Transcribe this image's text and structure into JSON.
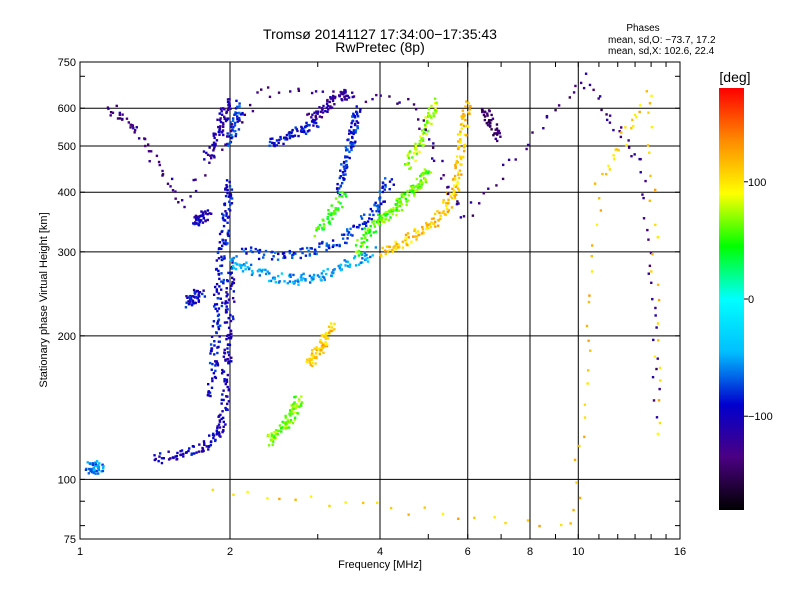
{
  "chart_data": {
    "type": "scatter",
    "title": "Tromsø 20141127 17:34:00−17:35:43",
    "subtitle": "RwPretec (8p)",
    "xlabel": "Frequency [MHz]",
    "ylabel": "Stationary phase Virtual Height [km]",
    "x_scale": "log",
    "y_scale": "log",
    "xlim": [
      1,
      16
    ],
    "ylim": [
      75,
      750
    ],
    "x_ticks": [
      1,
      2,
      4,
      6,
      8,
      10,
      16
    ],
    "x_tick_labels": [
      "1",
      "2",
      "4",
      "6",
      "8",
      "10",
      "16"
    ],
    "y_ticks": [
      75,
      100,
      200,
      300,
      400,
      500,
      600,
      750
    ],
    "y_tick_labels": [
      "75",
      "100",
      "200",
      "300",
      "400",
      "500",
      "600",
      "750"
    ],
    "grid": true,
    "stats": {
      "heading": "Phases",
      "line_o": "mean, sd,O: −73.7, 17.2",
      "line_x": "mean, sd,X: 102.6, 22.4"
    },
    "colorbar": {
      "label": "[deg]",
      "ticks": [
        -100,
        0,
        100
      ],
      "tick_labels": [
        "−100",
        "0",
        "100"
      ],
      "range": [
        -180,
        180
      ],
      "colors": [
        "#000000",
        "#4b0082",
        "#0000cd",
        "#00bfff",
        "#00ffff",
        "#00ff00",
        "#ffff00",
        "#ff8c00",
        "#ff0000"
      ]
    },
    "traces": [
      {
        "name": "",
        "phase": -100,
        "points": [
          [
            1.42,
            110
          ],
          [
            1.6,
            113
          ],
          [
            1.8,
            118
          ],
          [
            1.9,
            125
          ],
          [
            1.95,
            140
          ],
          [
            1.97,
            170
          ],
          [
            1.99,
            200
          ],
          [
            2.0,
            240
          ],
          [
            2.0,
            280
          ]
        ]
      },
      {
        "name": "",
        "phase": -90,
        "points": [
          [
            1.83,
            150
          ],
          [
            1.86,
            180
          ],
          [
            1.88,
            210
          ],
          [
            1.9,
            250
          ],
          [
            1.92,
            290
          ],
          [
            1.95,
            330
          ],
          [
            1.98,
            380
          ],
          [
            2.0,
            420
          ]
        ]
      },
      {
        "name": "",
        "phase": -50,
        "points": [
          [
            2.0,
            285
          ],
          [
            2.2,
            275
          ],
          [
            2.5,
            265
          ],
          [
            2.8,
            262
          ],
          [
            3.1,
            268
          ],
          [
            3.5,
            285
          ],
          [
            3.9,
            300
          ]
        ]
      },
      {
        "name": "",
        "phase": -80,
        "points": [
          [
            2.1,
            300
          ],
          [
            2.5,
            295
          ],
          [
            2.9,
            300
          ],
          [
            3.3,
            315
          ],
          [
            3.7,
            345
          ],
          [
            4.0,
            380
          ],
          [
            4.2,
            430
          ]
        ]
      },
      {
        "name": "",
        "phase": -110,
        "points": [
          [
            1.8,
            480
          ],
          [
            1.9,
            530
          ],
          [
            1.95,
            580
          ],
          [
            1.98,
            620
          ]
        ]
      },
      {
        "name": "",
        "phase": -80,
        "points": [
          [
            2.0,
            500
          ],
          [
            2.05,
            560
          ],
          [
            2.1,
            610
          ]
        ]
      },
      {
        "name": "",
        "phase": -90,
        "points": [
          [
            2.4,
            500
          ],
          [
            2.6,
            520
          ],
          [
            2.8,
            540
          ],
          [
            3.0,
            560
          ]
        ]
      },
      {
        "name": "",
        "phase": -120,
        "points": [
          [
            2.9,
            570
          ],
          [
            3.1,
            600
          ],
          [
            3.3,
            630
          ],
          [
            3.5,
            650
          ]
        ]
      },
      {
        "name": "",
        "phase": -85,
        "points": [
          [
            3.3,
            400
          ],
          [
            3.4,
            450
          ],
          [
            3.5,
            500
          ],
          [
            3.55,
            550
          ],
          [
            3.6,
            600
          ]
        ]
      },
      {
        "name": "",
        "phase": 60,
        "points": [
          [
            3.6,
            300
          ],
          [
            3.8,
            330
          ],
          [
            4.0,
            350
          ],
          [
            4.2,
            360
          ],
          [
            4.4,
            380
          ],
          [
            4.6,
            400
          ],
          [
            4.8,
            420
          ],
          [
            5.0,
            440
          ]
        ]
      },
      {
        "name": "",
        "phase": 110,
        "points": [
          [
            4.0,
            300
          ],
          [
            4.4,
            310
          ],
          [
            4.8,
            330
          ],
          [
            5.2,
            350
          ],
          [
            5.5,
            380
          ],
          [
            5.7,
            420
          ],
          [
            5.8,
            480
          ],
          [
            5.9,
            550
          ],
          [
            6.0,
            620
          ]
        ]
      },
      {
        "name": "",
        "phase": 75,
        "points": [
          [
            4.5,
            450
          ],
          [
            4.8,
            500
          ],
          [
            5.0,
            560
          ],
          [
            5.2,
            620
          ]
        ]
      },
      {
        "name": "",
        "phase": 50,
        "points": [
          [
            3.0,
            330
          ],
          [
            3.2,
            360
          ],
          [
            3.4,
            400
          ]
        ]
      },
      {
        "name": "",
        "phase": 110,
        "points": [
          [
            2.9,
            175
          ],
          [
            3.0,
            185
          ],
          [
            3.1,
            195
          ],
          [
            3.2,
            210
          ]
        ]
      },
      {
        "name": "",
        "phase": 65,
        "points": [
          [
            2.4,
            120
          ],
          [
            2.5,
            125
          ],
          [
            2.6,
            132
          ],
          [
            2.7,
            140
          ],
          [
            2.75,
            148
          ]
        ]
      },
      {
        "name": "",
        "phase": -100,
        "points": [
          [
            1.7,
            345
          ],
          [
            1.75,
            352
          ],
          [
            1.8,
            360
          ]
        ]
      },
      {
        "name": "",
        "phase": -95,
        "points": [
          [
            1.65,
            235
          ],
          [
            1.7,
            240
          ],
          [
            1.75,
            248
          ]
        ]
      },
      {
        "name": "",
        "phase": -60,
        "points": [
          [
            1.04,
            106
          ],
          [
            1.07,
            105
          ],
          [
            1.1,
            107
          ]
        ]
      },
      {
        "name": "",
        "phase": -140,
        "points": [
          [
            6.5,
            590
          ],
          [
            6.7,
            560
          ],
          [
            6.9,
            520
          ]
        ]
      },
      {
        "name": "",
        "phase": -130,
        "points": [
          [
            1.15,
            600
          ],
          [
            1.3,
            540
          ],
          [
            1.6,
            380
          ],
          [
            2.3,
            650
          ],
          [
            4.6,
            620
          ],
          [
            5.9,
            350
          ],
          [
            10.2,
            700
          ],
          [
            13.5,
            450
          ],
          [
            14.5,
            130
          ]
        ]
      },
      {
        "name": "",
        "phase": 110,
        "points": [
          [
            1.88,
            95
          ],
          [
            9.8,
            80
          ],
          [
            11.0,
            420
          ],
          [
            14.0,
            650
          ],
          [
            14.5,
            115
          ]
        ]
      }
    ]
  }
}
